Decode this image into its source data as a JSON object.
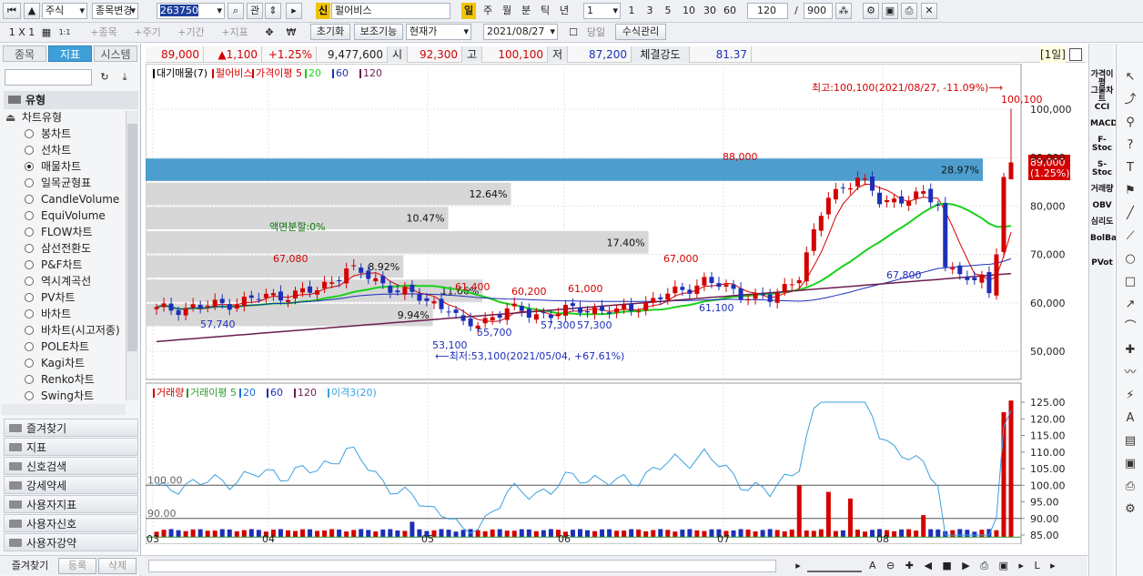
{
  "toolbar": {
    "market": "주식",
    "stock_change": "종목변경",
    "code": "263750",
    "watch": "관",
    "badge": "신",
    "stock_name": "펄어비스",
    "periods": [
      "일",
      "주",
      "월",
      "분",
      "틱",
      "년"
    ],
    "interval_value": "1",
    "quick_intervals": [
      "1",
      "3",
      "5",
      "10",
      "30",
      "60"
    ],
    "count": "120",
    "slash": "/",
    "total": "900"
  },
  "toolbar2": {
    "layout": "1 X 1",
    "small_label": "1:1",
    "add_items": [
      "+종목",
      "+주기",
      "+기간",
      "+지표"
    ],
    "reset": "초기화",
    "aux": "보조기능",
    "price_type": "현재가",
    "date": "2021/08/27",
    "today_label": "당일",
    "formula": "수식관리"
  },
  "left": {
    "tabs": [
      "종목",
      "지표",
      "시스템"
    ],
    "group_title": "유형",
    "chart_type_title": "차트유형",
    "chart_types": [
      "봉차트",
      "선차트",
      "매물차트",
      "일목균형표",
      "CandleVolume",
      "EquiVolume",
      "FLOW차트",
      "삼선전환도",
      "P&F차트",
      "역시계곡선",
      "PV차트",
      "바차트",
      "바차트(시고저종)",
      "POLE차트",
      "Kagi차트",
      "Renko차트",
      "Swing차트"
    ],
    "selected_type": "매물차트",
    "sections": [
      "즐겨찾기",
      "지표",
      "신호검색",
      "강세약세",
      "사용자지표",
      "사용자신호",
      "사용자강약"
    ],
    "footer": [
      "즐겨찾기",
      "등록",
      "삭제"
    ]
  },
  "infobar": {
    "price": "89,000",
    "change": "▲1,100",
    "rate": "+1.25%",
    "volume": "9,477,600",
    "open_label": "시",
    "open": "92,300",
    "high_label": "고",
    "high": "100,100",
    "low_label": "저",
    "low": "87,200",
    "strength_label": "체결강도",
    "strength": "81.37",
    "period_tag": "[1일]"
  },
  "legend_top": {
    "items": [
      "대기매물(7)",
      "펄어비스",
      "가격이평 5",
      "20",
      "60",
      "120"
    ],
    "colors": [
      "#000000",
      "#d40000",
      "#d40000",
      "#19d119",
      "#1d2fb8",
      "#6b1d4d"
    ]
  },
  "legend_bottom": {
    "items": [
      "거래량",
      "거래이평 5",
      "20",
      "60",
      "120",
      "이격3(20)"
    ],
    "colors": [
      "#d40000",
      "#2f9a2f",
      "#1d6fd6",
      "#1d2fb8",
      "#6b1d4d",
      "#3aa0e0"
    ]
  },
  "annotations": {
    "high": "최고:100,100(2021/08/27, -11.09%)⟶",
    "low": "⟵최저:53,100(2021/05/04, +67.61%)",
    "split": "액면분할:0%",
    "price_tag": "89,000",
    "price_tag2": "(1.25%)",
    "point_labels": [
      "100,100",
      "88,000",
      "67,080",
      "61,400",
      "60,200",
      "61,000",
      "67,000",
      "57,740",
      "53,100",
      "55,700",
      "57,300",
      "57,300",
      "61,100",
      "67,800"
    ]
  },
  "overhang": {
    "labels": [
      "28.97%",
      "12.64%",
      "10.47%",
      "17.40%",
      "8.92%",
      "11.66%",
      "9.94%"
    ],
    "fractions": [
      0.2897,
      0.1264,
      0.1047,
      0.174,
      0.0892,
      0.1166,
      0.0994
    ]
  },
  "axis": {
    "price_ticks": [
      "100,000",
      "90,000",
      "80,000",
      "70,000",
      "60,000",
      "50,000"
    ],
    "volume_ticks": [
      "125.00",
      "120.00",
      "115.00",
      "110.00",
      "105.00",
      "100.00",
      "95.00",
      "90.00",
      "85.00"
    ],
    "x_ticks": [
      "03",
      "04",
      "05",
      "06",
      "07",
      "08"
    ],
    "ref_lines": [
      "100.00",
      "90.00"
    ]
  },
  "right_indicators": [
    "가격이평",
    "그물차트",
    "CCI",
    "MACD",
    "F-Stoc",
    "S-Stoc",
    "거래량",
    "OBV",
    "심리도",
    "BolBand",
    "PVot"
  ],
  "tools": [
    "cursor",
    "trend",
    "fib",
    "help",
    "text",
    "flag",
    "line",
    "line2",
    "circle",
    "rect",
    "arrow",
    "arc",
    "cross",
    "wave",
    "wave2",
    "auto",
    "doc",
    "save",
    "print",
    "settings"
  ]
}
